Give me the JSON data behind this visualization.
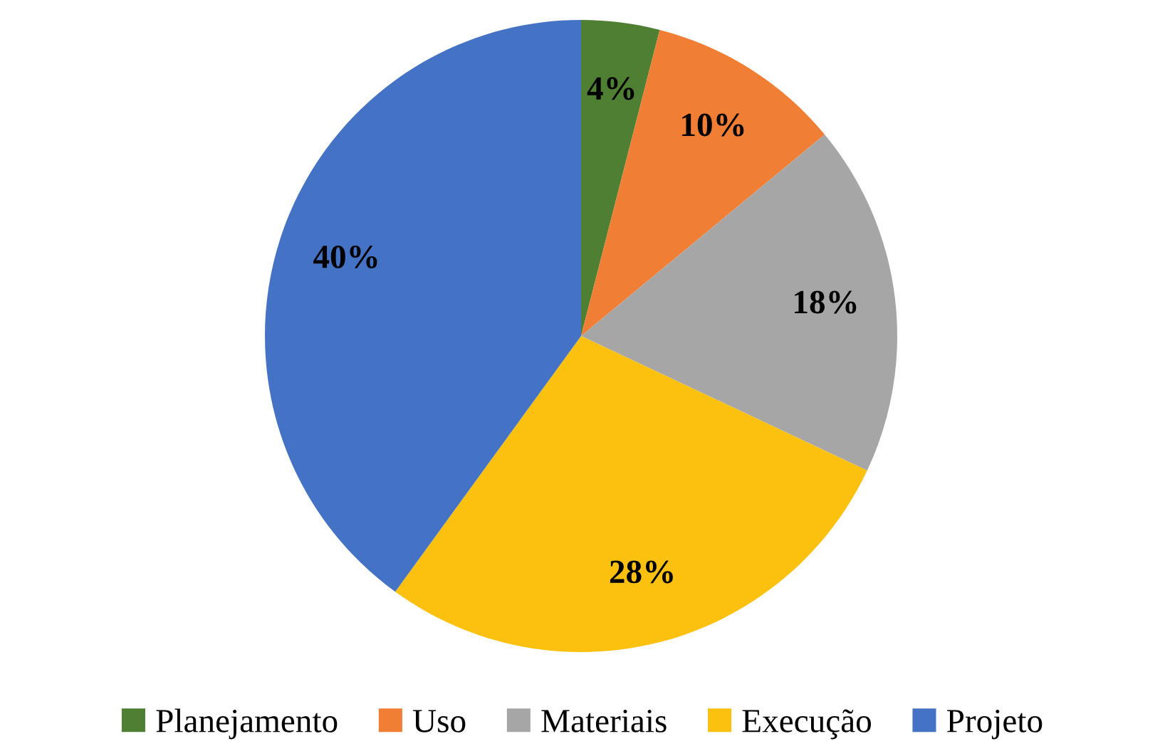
{
  "chart_data": {
    "type": "pie",
    "categories": [
      "Planejamento",
      "Uso",
      "Materiais",
      "Execução",
      "Projeto"
    ],
    "values": [
      4,
      10,
      18,
      28,
      40
    ],
    "value_labels": [
      "4%",
      "10%",
      "18%",
      "28%",
      "40%"
    ],
    "colors": [
      "#4e7f33",
      "#f07f35",
      "#a6a6a6",
      "#fcc10f",
      "#4472c4"
    ],
    "legend": "bottom"
  }
}
